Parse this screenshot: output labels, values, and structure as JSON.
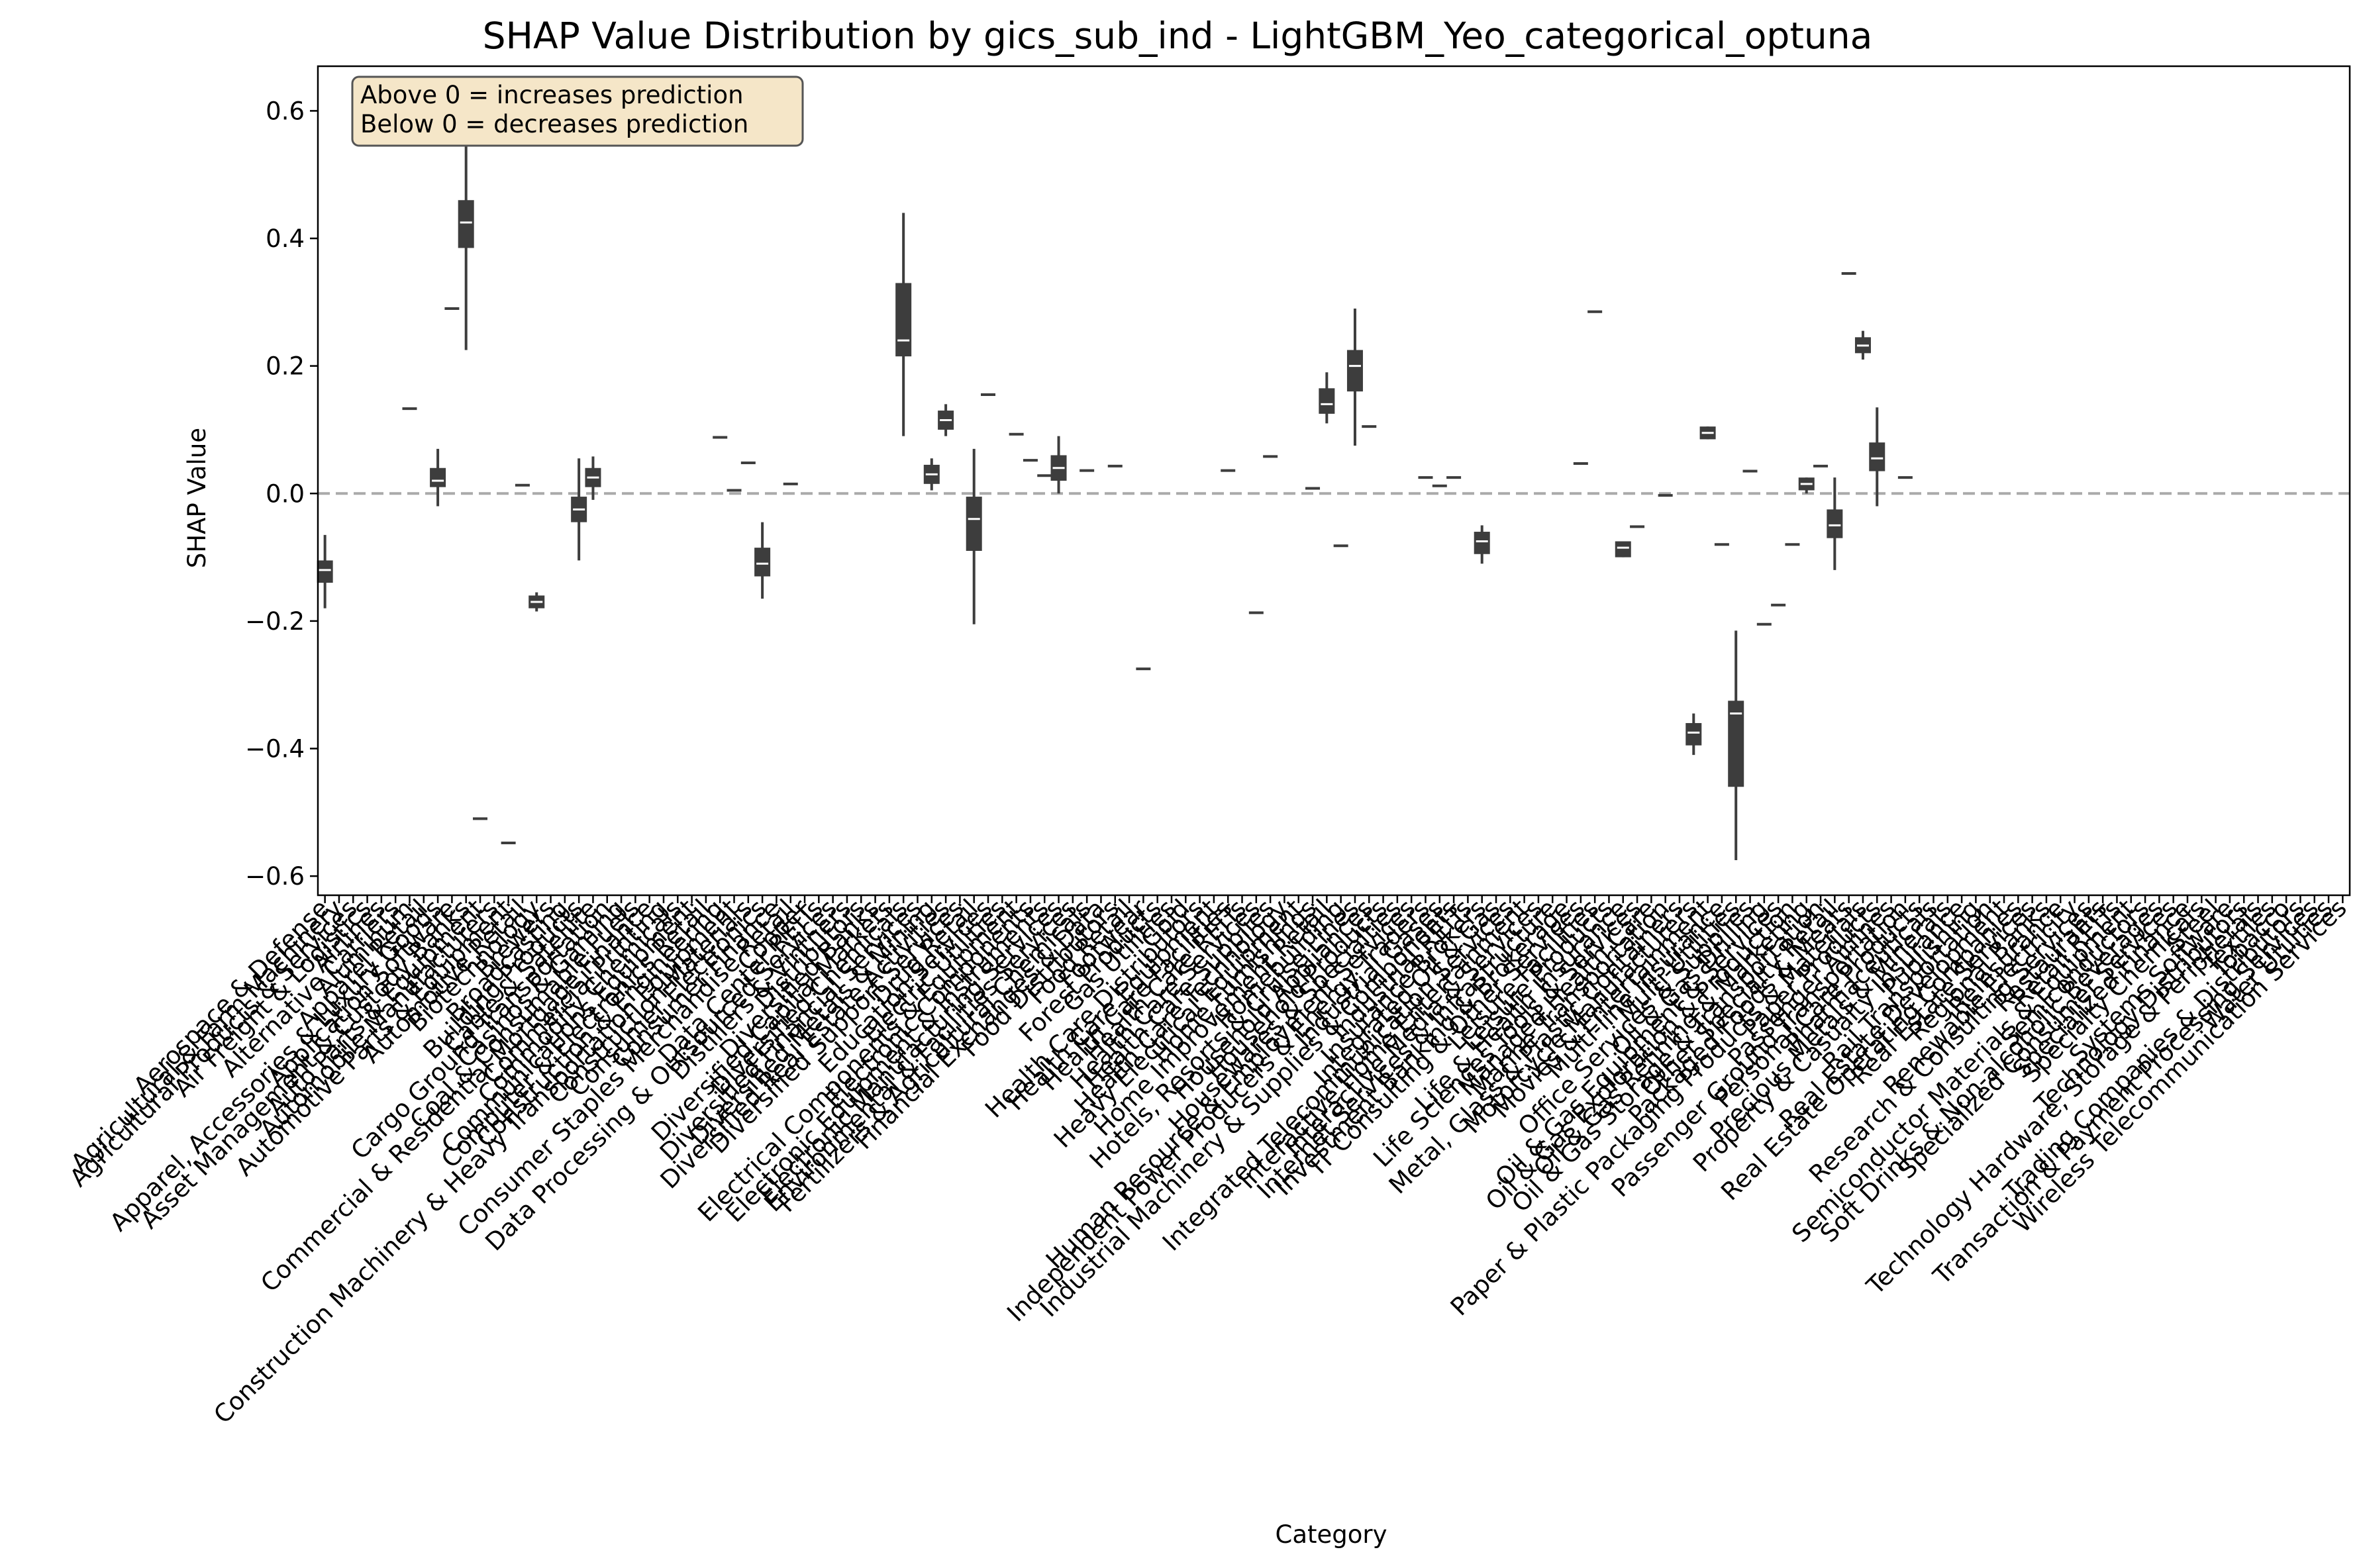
{
  "chart_data": {
    "type": "box",
    "title": "SHAP Value Distribution by gics_sub_ind - LightGBM_Yeo_categorical_optuna",
    "xlabel": "Category",
    "ylabel": "SHAP Value",
    "ylim": [
      -0.63,
      0.67
    ],
    "yticks": [
      -0.6,
      -0.4,
      -0.2,
      0.0,
      0.2,
      0.4,
      0.6
    ],
    "ytick_labels": [
      "−0.6",
      "−0.4",
      "−0.2",
      "0.0",
      "0.2",
      "0.4",
      "0.6"
    ],
    "reference_line": 0.0,
    "grid": false,
    "annotation": [
      "Above 0 = increases prediction",
      "Below 0 = decreases prediction"
    ],
    "colors": {
      "box": "#3d3d3d",
      "median": "#ffffff",
      "reference_line": "#aaaaaa",
      "annotation_fill": "#f5e6c8",
      "annotation_edge": "#555555"
    },
    "categories": [
      "Aerospace & Defense",
      "Agricultural & Farm Machinery",
      "Agricultural Products & Services",
      "Air Freight & Logistics",
      "Airlines",
      "Alternative Carriers",
      "Aluminum",
      "Apparel Retail",
      "Apparel, Accessories & Luxury Goods",
      "Application Software",
      "Asset Management & Custody Banks",
      "Auto Parts & Equipment",
      "Automobile Manufacturers",
      "Automotive Parts & Equipment",
      "Automotive Retail",
      "Biotechnology",
      "Brewers",
      "Broadcasting",
      "Building Products",
      "Cable & Satellite",
      "Cargo Ground Transportation",
      "Casinos & Gaming",
      "Coal & Consumable Fuels",
      "Commercial & Residential Mortgage Finance",
      "Commercial Printing",
      "Commodity Chemicals",
      "Communications Equipment",
      "Computer & Electronics Retail",
      "Construction & Engineering",
      "Construction Machinery & Heavy Transportation Equipment",
      "Construction Materials",
      "Consumer Electronics",
      "Consumer Finance",
      "Consumer Staples Merchandise Retail",
      "Copper",
      "Data Center REITs",
      "Data Processing & Outsourced Services",
      "Distillers & Vintners",
      "Distributors",
      "Diversified Banks",
      "Diversified Capital Markets",
      "Diversified Chemicals",
      "Diversified Financial Services",
      "Diversified Metals & Mining",
      "Diversified Real Estate Activities",
      "Diversified Support Services",
      "Drug Retail",
      "Education Services",
      "Electric Utilities",
      "Electrical Components & Equipment",
      "Electronic Components",
      "Electronic Equipment & Instruments",
      "Electronic Manufacturing Services",
      "Environmental & Facilities Services",
      "Fertilizers & Agricultural Chemicals",
      "Financial Exchanges & Data",
      "Food Distributors",
      "Food Retail",
      "Footwear",
      "Forest Products",
      "Gas Utilities",
      "Gold",
      "Health Care Distributors",
      "Health Care Equipment",
      "Health Care Facilities",
      "Health Care REITs",
      "Health Care Services",
      "Health Care Supplies",
      "Health Care Technology",
      "Heavy Electrical Equipment",
      "Home Furnishings",
      "Home Improvement Retail",
      "Homebuilding",
      "Hotels, Resorts & Cruise Lines",
      "Household Appliances",
      "Household Products",
      "Housewares & Specialties",
      "Human Resource & Employment Services",
      "Independent Power Producers & Energy Traders",
      "Industrial Gases",
      "Industrial Machinery & Supplies & Components",
      "Industrial REITs",
      "Insurance Brokers",
      "Integrated Oil & Gas",
      "Integrated Telecommunication Services",
      "Interactive Home Entertainment",
      "Interactive Media & Services",
      "Internet Services & Infrastructure",
      "Investment Banking & Brokerage",
      "IT Consulting & Other Services",
      "Leisure Facilities",
      "Leisure Products",
      "Life & Health Insurance",
      "Life Sciences Tools & Services",
      "Managed Health Care",
      "Marine Transportation",
      "Metal, Glass & Plastic Containers",
      "Motorcycle Manufacturers",
      "Movies & Entertainment",
      "Multi-line Insurance",
      "Multi-Utilities",
      "Office Services & Supplies",
      "Oil & Gas Drilling",
      "Oil & Gas Equipment & Services",
      "Oil & Gas Exploration & Production",
      "Oil & Gas Refining & Marketing",
      "Oil & Gas Storage & Transportation",
      "Other Specialty Retail",
      "Packaged Foods & Meats",
      "Paper & Plastic Packaging Products & Materials",
      "Paper Products",
      "Passenger Airlines",
      "Passenger Ground Transportation",
      "Personal Care Products",
      "Pharmaceuticals",
      "Precious Metals & Minerals",
      "Property & Casualty Insurance",
      "Publishing",
      "Rail Transportation",
      "Real Estate Development",
      "Real Estate Operating Companies",
      "Real Estate Services",
      "Regional Banks",
      "Reinsurance",
      "Renewable Electricity",
      "Research & Consulting Services",
      "Restaurants",
      "Retail REITs",
      "Semiconductor Materials & Equipment",
      "Semiconductors",
      "Soft Drinks & Non-alcoholic Beverages",
      "Specialized Consumer Services",
      "Specialized Finance",
      "Specialty Chemicals",
      "Steel",
      "Systems Software",
      "Technology Distributors",
      "Technology Hardware, Storage & Peripherals",
      "Textiles",
      "Tobacco",
      "Trading Companies & Distributors",
      "Transaction & Payment Processing Services",
      "Water Utilities",
      "Wireless Telecommunication Services"
    ],
    "boxes": [
      {
        "i": 0,
        "whislo": -0.18,
        "q1": -0.14,
        "med": -0.12,
        "q3": -0.105,
        "whishi": -0.065
      },
      {
        "i": 6,
        "whislo": 0.133,
        "q1": 0.133,
        "med": 0.133,
        "q3": 0.133,
        "whishi": 0.133
      },
      {
        "i": 8,
        "whislo": -0.02,
        "q1": 0.01,
        "med": 0.02,
        "q3": 0.04,
        "whishi": 0.07
      },
      {
        "i": 9,
        "whislo": 0.29,
        "q1": 0.29,
        "med": 0.29,
        "q3": 0.29,
        "whishi": 0.29
      },
      {
        "i": 10,
        "whislo": 0.225,
        "q1": 0.385,
        "med": 0.425,
        "q3": 0.46,
        "whishi": 0.62
      },
      {
        "i": 11,
        "whislo": -0.51,
        "q1": -0.51,
        "med": -0.51,
        "q3": -0.51,
        "whishi": -0.51
      },
      {
        "i": 13,
        "whislo": -0.548,
        "q1": -0.548,
        "med": -0.548,
        "q3": -0.548,
        "whishi": -0.548
      },
      {
        "i": 14,
        "whislo": 0.013,
        "q1": 0.013,
        "med": 0.013,
        "q3": 0.013,
        "whishi": 0.013
      },
      {
        "i": 15,
        "whislo": -0.185,
        "q1": -0.18,
        "med": -0.17,
        "q3": -0.16,
        "whishi": -0.155
      },
      {
        "i": 18,
        "whislo": -0.105,
        "q1": -0.045,
        "med": -0.025,
        "q3": -0.005,
        "whishi": 0.055
      },
      {
        "i": 19,
        "whislo": -0.01,
        "q1": 0.01,
        "med": 0.025,
        "q3": 0.04,
        "whishi": 0.058
      },
      {
        "i": 28,
        "whislo": 0.088,
        "q1": 0.088,
        "med": 0.088,
        "q3": 0.088,
        "whishi": 0.088
      },
      {
        "i": 29,
        "whislo": 0.005,
        "q1": 0.005,
        "med": 0.005,
        "q3": 0.005,
        "whishi": 0.005
      },
      {
        "i": 30,
        "whislo": 0.048,
        "q1": 0.048,
        "med": 0.048,
        "q3": 0.048,
        "whishi": 0.048
      },
      {
        "i": 31,
        "whislo": -0.165,
        "q1": -0.13,
        "med": -0.11,
        "q3": -0.085,
        "whishi": -0.045
      },
      {
        "i": 33,
        "whislo": 0.015,
        "q1": 0.015,
        "med": 0.015,
        "q3": 0.015,
        "whishi": 0.015
      },
      {
        "i": 41,
        "whislo": 0.09,
        "q1": 0.215,
        "med": 0.24,
        "q3": 0.33,
        "whishi": 0.44
      },
      {
        "i": 43,
        "whislo": 0.005,
        "q1": 0.015,
        "med": 0.03,
        "q3": 0.045,
        "whishi": 0.055
      },
      {
        "i": 44,
        "whislo": 0.09,
        "q1": 0.1,
        "med": 0.115,
        "q3": 0.13,
        "whishi": 0.14
      },
      {
        "i": 46,
        "whislo": -0.205,
        "q1": -0.09,
        "med": -0.04,
        "q3": -0.005,
        "whishi": 0.07
      },
      {
        "i": 47,
        "whislo": 0.155,
        "q1": 0.155,
        "med": 0.155,
        "q3": 0.155,
        "whishi": 0.155
      },
      {
        "i": 49,
        "whislo": 0.093,
        "q1": 0.093,
        "med": 0.093,
        "q3": 0.093,
        "whishi": 0.093
      },
      {
        "i": 50,
        "whislo": 0.052,
        "q1": 0.052,
        "med": 0.052,
        "q3": 0.052,
        "whishi": 0.052
      },
      {
        "i": 51,
        "whislo": 0.028,
        "q1": 0.028,
        "med": 0.028,
        "q3": 0.028,
        "whishi": 0.028
      },
      {
        "i": 52,
        "whislo": 0.0,
        "q1": 0.02,
        "med": 0.04,
        "q3": 0.06,
        "whishi": 0.09
      },
      {
        "i": 54,
        "whislo": 0.036,
        "q1": 0.036,
        "med": 0.036,
        "q3": 0.036,
        "whishi": 0.036
      },
      {
        "i": 56,
        "whislo": 0.043,
        "q1": 0.043,
        "med": 0.043,
        "q3": 0.043,
        "whishi": 0.043
      },
      {
        "i": 58,
        "whislo": -0.275,
        "q1": -0.275,
        "med": -0.275,
        "q3": -0.275,
        "whishi": -0.275
      },
      {
        "i": 64,
        "whislo": 0.036,
        "q1": 0.036,
        "med": 0.036,
        "q3": 0.036,
        "whishi": 0.036
      },
      {
        "i": 66,
        "whislo": -0.187,
        "q1": -0.187,
        "med": -0.187,
        "q3": -0.187,
        "whishi": -0.187
      },
      {
        "i": 67,
        "whislo": 0.058,
        "q1": 0.058,
        "med": 0.058,
        "q3": 0.058,
        "whishi": 0.058
      },
      {
        "i": 70,
        "whislo": 0.008,
        "q1": 0.008,
        "med": 0.008,
        "q3": 0.008,
        "whishi": 0.008
      },
      {
        "i": 71,
        "whislo": 0.11,
        "q1": 0.125,
        "med": 0.14,
        "q3": 0.165,
        "whishi": 0.19
      },
      {
        "i": 72,
        "whislo": -0.082,
        "q1": -0.082,
        "med": -0.082,
        "q3": -0.082,
        "whishi": -0.082
      },
      {
        "i": 73,
        "whislo": 0.075,
        "q1": 0.16,
        "med": 0.2,
        "q3": 0.225,
        "whishi": 0.29
      },
      {
        "i": 74,
        "whislo": 0.105,
        "q1": 0.105,
        "med": 0.105,
        "q3": 0.105,
        "whishi": 0.105
      },
      {
        "i": 78,
        "whislo": 0.025,
        "q1": 0.025,
        "med": 0.025,
        "q3": 0.025,
        "whishi": 0.025
      },
      {
        "i": 79,
        "whislo": 0.012,
        "q1": 0.012,
        "med": 0.012,
        "q3": 0.012,
        "whishi": 0.012
      },
      {
        "i": 80,
        "whislo": 0.025,
        "q1": 0.025,
        "med": 0.025,
        "q3": 0.025,
        "whishi": 0.025
      },
      {
        "i": 82,
        "whislo": -0.11,
        "q1": -0.095,
        "med": -0.075,
        "q3": -0.06,
        "whishi": -0.05
      },
      {
        "i": 89,
        "whislo": 0.047,
        "q1": 0.047,
        "med": 0.047,
        "q3": 0.047,
        "whishi": 0.047
      },
      {
        "i": 90,
        "whislo": 0.285,
        "q1": 0.285,
        "med": 0.285,
        "q3": 0.285,
        "whishi": 0.285
      },
      {
        "i": 92,
        "whislo": -0.1,
        "q1": -0.1,
        "med": -0.085,
        "q3": -0.075,
        "whishi": -0.075
      },
      {
        "i": 93,
        "whislo": -0.052,
        "q1": -0.052,
        "med": -0.052,
        "q3": -0.052,
        "whishi": -0.052
      },
      {
        "i": 95,
        "whislo": -0.003,
        "q1": -0.003,
        "med": -0.003,
        "q3": -0.003,
        "whishi": -0.003
      },
      {
        "i": 97,
        "whislo": -0.41,
        "q1": -0.395,
        "med": -0.375,
        "q3": -0.36,
        "whishi": -0.345
      },
      {
        "i": 98,
        "whislo": 0.085,
        "q1": 0.085,
        "med": 0.095,
        "q3": 0.105,
        "whishi": 0.105
      },
      {
        "i": 99,
        "whislo": -0.08,
        "q1": -0.08,
        "med": -0.08,
        "q3": -0.08,
        "whishi": -0.08
      },
      {
        "i": 100,
        "whislo": -0.575,
        "q1": -0.46,
        "med": -0.345,
        "q3": -0.325,
        "whishi": -0.215
      },
      {
        "i": 101,
        "whislo": 0.035,
        "q1": 0.035,
        "med": 0.035,
        "q3": 0.035,
        "whishi": 0.035
      },
      {
        "i": 102,
        "whislo": -0.205,
        "q1": -0.205,
        "med": -0.205,
        "q3": -0.205,
        "whishi": -0.205
      },
      {
        "i": 103,
        "whislo": -0.175,
        "q1": -0.175,
        "med": -0.175,
        "q3": -0.175,
        "whishi": -0.175
      },
      {
        "i": 104,
        "whislo": -0.08,
        "q1": -0.08,
        "med": -0.08,
        "q3": -0.08,
        "whishi": -0.08
      },
      {
        "i": 105,
        "whislo": 0.0,
        "q1": 0.005,
        "med": 0.015,
        "q3": 0.025,
        "whishi": 0.025
      },
      {
        "i": 106,
        "whislo": 0.043,
        "q1": 0.043,
        "med": 0.043,
        "q3": 0.043,
        "whishi": 0.043
      },
      {
        "i": 107,
        "whislo": -0.12,
        "q1": -0.07,
        "med": -0.05,
        "q3": -0.025,
        "whishi": 0.025
      },
      {
        "i": 108,
        "whislo": 0.345,
        "q1": 0.345,
        "med": 0.345,
        "q3": 0.345,
        "whishi": 0.345
      },
      {
        "i": 109,
        "whislo": 0.21,
        "q1": 0.22,
        "med": 0.232,
        "q3": 0.245,
        "whishi": 0.255
      },
      {
        "i": 110,
        "whislo": -0.02,
        "q1": 0.035,
        "med": 0.055,
        "q3": 0.08,
        "whishi": 0.135
      },
      {
        "i": 112,
        "whislo": 0.025,
        "q1": 0.025,
        "med": 0.025,
        "q3": 0.025,
        "whishi": 0.025
      }
    ]
  }
}
